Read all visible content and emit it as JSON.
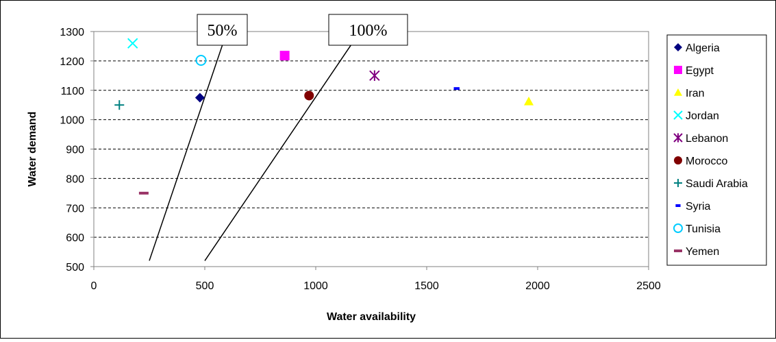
{
  "chart_data": {
    "type": "scatter",
    "title": "",
    "xlabel": "Water availability",
    "ylabel": "Water demand",
    "xlim": [
      0,
      2500
    ],
    "ylim": [
      500,
      1300
    ],
    "x_ticks": [
      0,
      500,
      1000,
      1500,
      2000,
      2500
    ],
    "y_ticks": [
      500,
      600,
      700,
      800,
      900,
      1000,
      1100,
      1200,
      1300
    ],
    "grid": "horizontal dashed",
    "legend_position": "right",
    "series": [
      {
        "name": "Algeria",
        "x": 478,
        "y": 1075,
        "marker": "diamond",
        "color": "#000080"
      },
      {
        "name": "Egypt",
        "x": 860,
        "y": 1218,
        "marker": "square",
        "color": "#FF00FF"
      },
      {
        "name": "Iran",
        "x": 1960,
        "y": 1062,
        "marker": "triangle",
        "color": "#FFFF00"
      },
      {
        "name": "Jordan",
        "x": 175,
        "y": 1260,
        "marker": "x",
        "color": "#00FFFF"
      },
      {
        "name": "Lebanon",
        "x": 1265,
        "y": 1150,
        "marker": "star",
        "color": "#800080"
      },
      {
        "name": "Morocco",
        "x": 970,
        "y": 1082,
        "marker": "circle",
        "color": "#800000"
      },
      {
        "name": "Saudi Arabia",
        "x": 115,
        "y": 1050,
        "marker": "plus",
        "color": "#008080"
      },
      {
        "name": "Syria",
        "x": 1635,
        "y": 1106,
        "marker": "dash",
        "color": "#0000FF"
      },
      {
        "name": "Tunisia",
        "x": 483,
        "y": 1202,
        "marker": "open-circle",
        "color": "#00CCFF"
      },
      {
        "name": "Yemen",
        "x": 225,
        "y": 750,
        "marker": "bar",
        "color": "#993366"
      }
    ],
    "reference_lines": [
      {
        "label": "50%",
        "points": [
          [
            250,
            520
          ],
          [
            600,
            1300
          ]
        ]
      },
      {
        "label": "100%",
        "points": [
          [
            500,
            520
          ],
          [
            1200,
            1300
          ]
        ]
      }
    ]
  }
}
